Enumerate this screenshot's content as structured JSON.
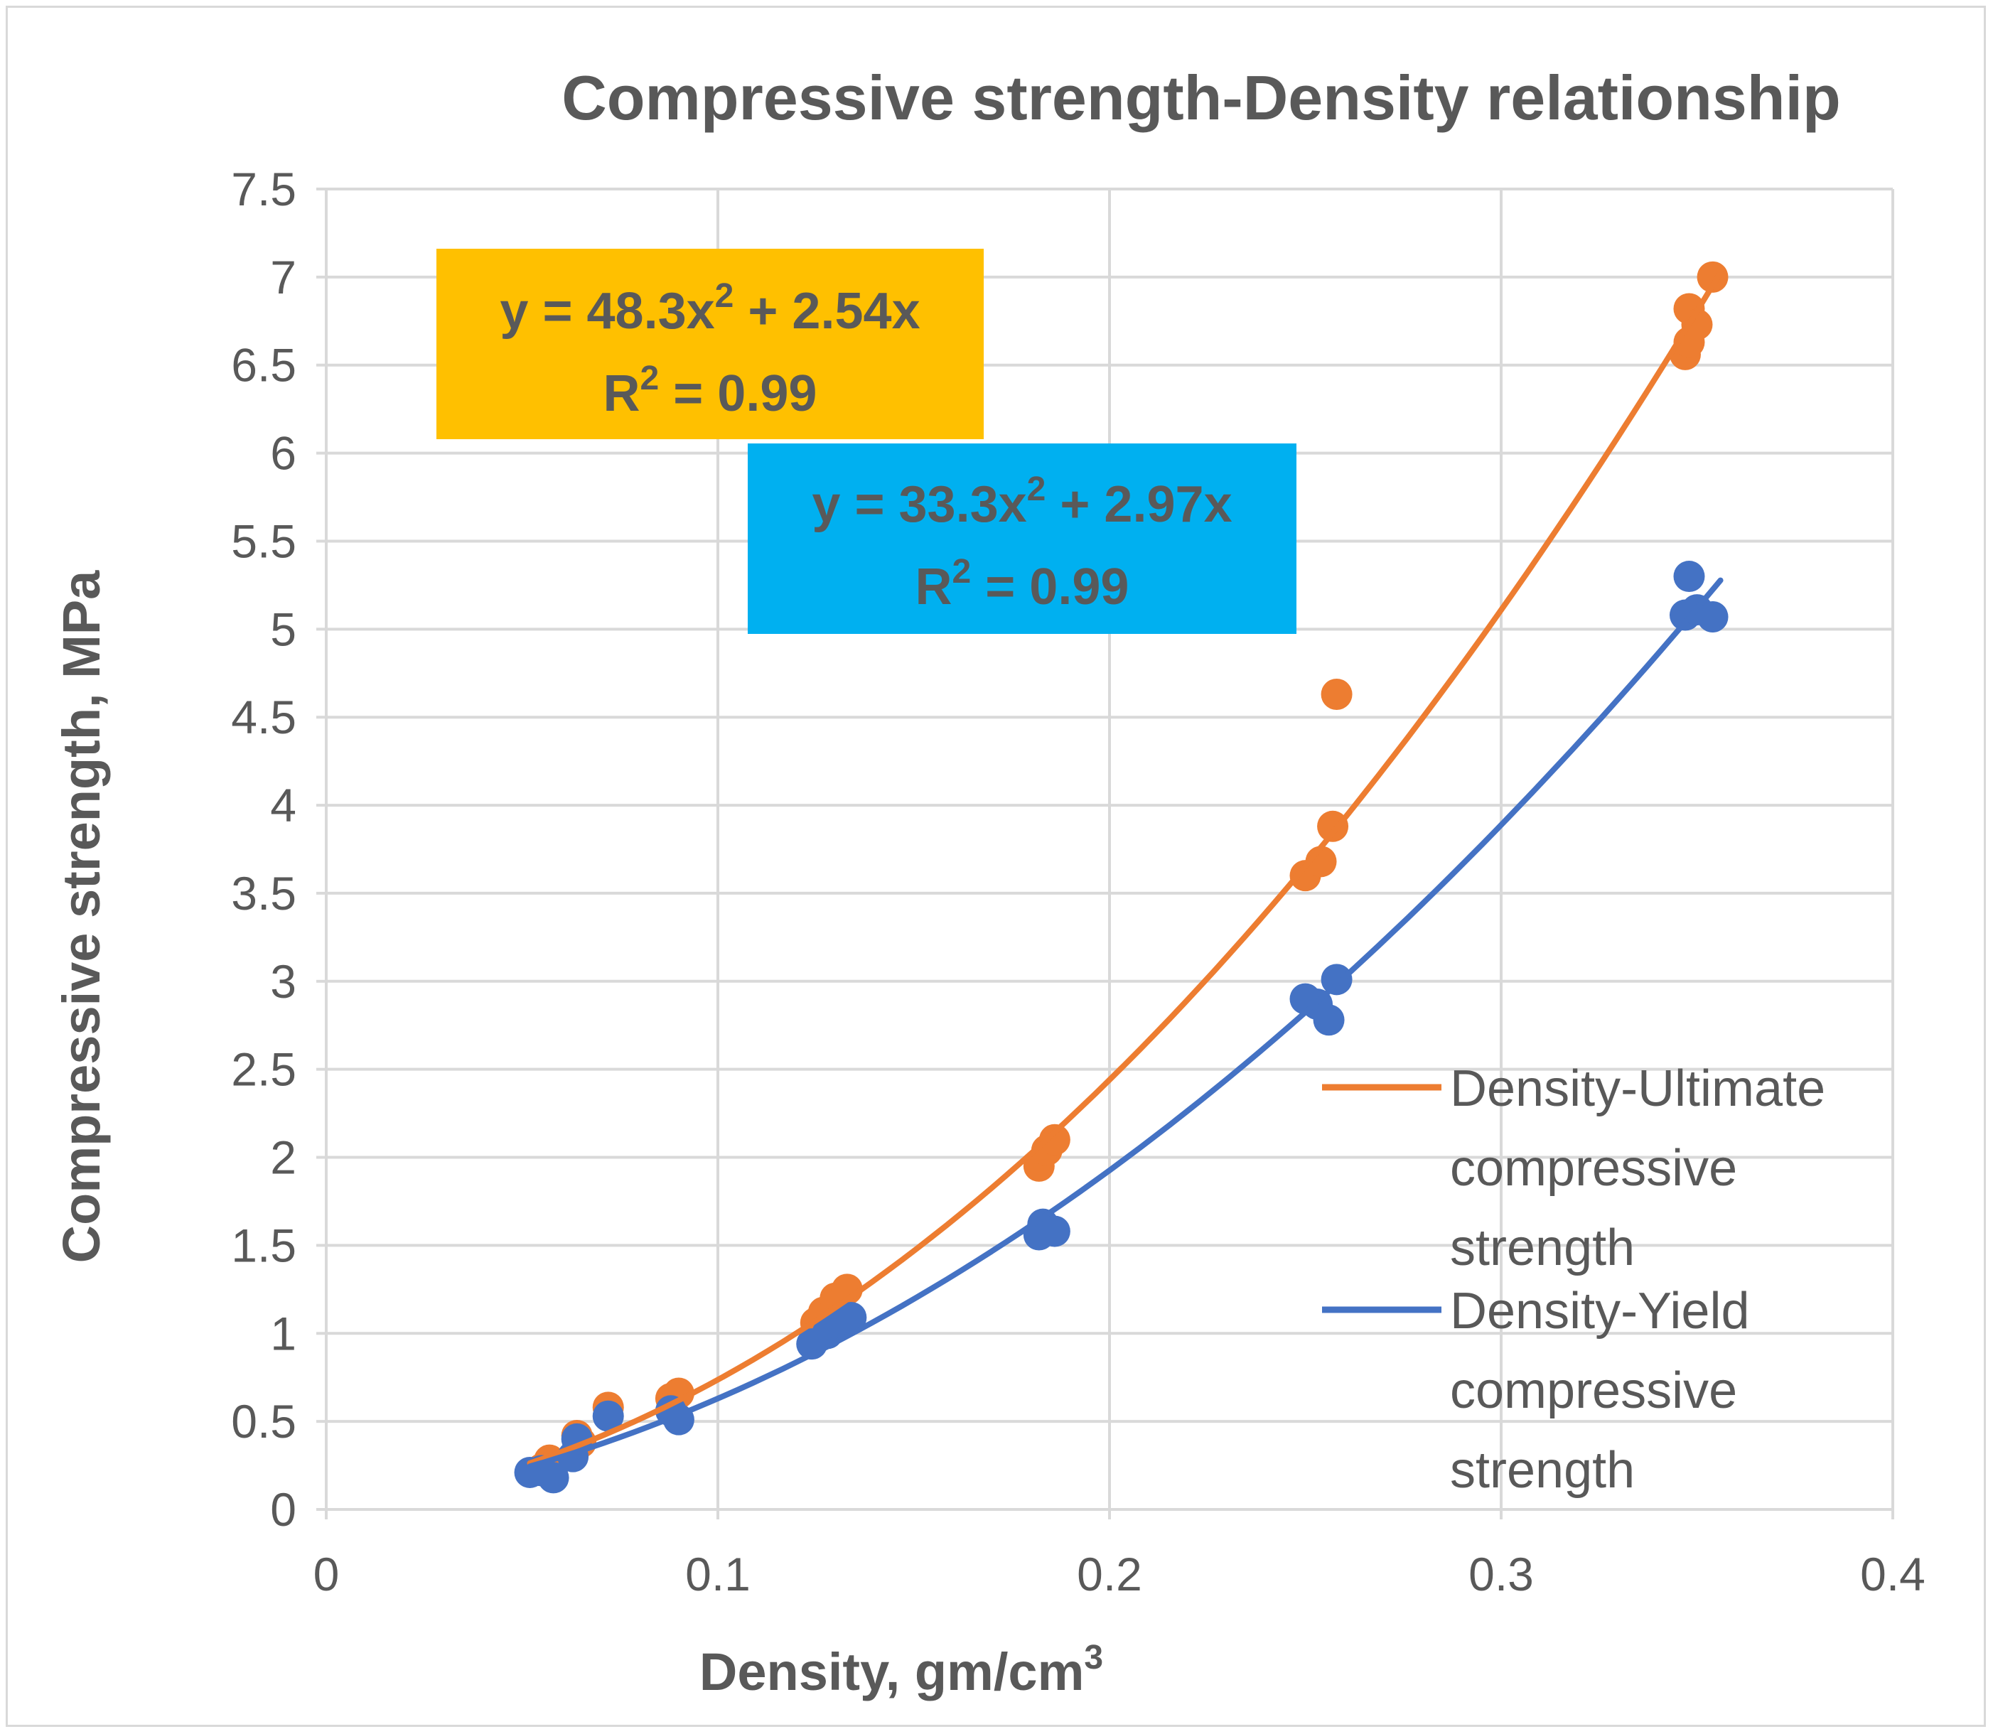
{
  "chart_data": {
    "type": "scatter",
    "title": "Compressive strength-Density relationship",
    "xlabel_main": "Density, gm/cm",
    "xlabel_sup": "3",
    "ylabel": "Compressive strength, MPa",
    "xlim": [
      0,
      0.4
    ],
    "ylim": [
      0,
      7.5
    ],
    "x_ticks": [
      "0",
      "0.1",
      "0.2",
      "0.3",
      "0.4"
    ],
    "y_ticks": [
      "0",
      "0.5",
      "1",
      "1.5",
      "2",
      "2.5",
      "3",
      "3.5",
      "4",
      "4.5",
      "5",
      "5.5",
      "6",
      "6.5",
      "7",
      "7.5"
    ],
    "x_tick_values": [
      0,
      0.1,
      0.2,
      0.3,
      0.4
    ],
    "y_tick_values": [
      0,
      0.5,
      1,
      1.5,
      2,
      2.5,
      3,
      3.5,
      4,
      4.5,
      5,
      5.5,
      6,
      6.5,
      7,
      7.5
    ],
    "grid": true,
    "legend_position": "right",
    "series": [
      {
        "name": "Density-Ultimate compressive strength",
        "legend_lines": [
          "Density-Ultimate",
          "compressive",
          "strength"
        ],
        "color": "#ED7D31",
        "points": [
          [
            0.055,
            0.23
          ],
          [
            0.057,
            0.28
          ],
          [
            0.058,
            0.25
          ],
          [
            0.064,
            0.42
          ],
          [
            0.065,
            0.38
          ],
          [
            0.072,
            0.58
          ],
          [
            0.088,
            0.63
          ],
          [
            0.09,
            0.66
          ],
          [
            0.125,
            1.06
          ],
          [
            0.127,
            1.12
          ],
          [
            0.13,
            1.2
          ],
          [
            0.133,
            1.25
          ],
          [
            0.182,
            1.95
          ],
          [
            0.184,
            2.04
          ],
          [
            0.186,
            2.1
          ],
          [
            0.25,
            3.6
          ],
          [
            0.254,
            3.68
          ],
          [
            0.257,
            3.88
          ],
          [
            0.258,
            4.63
          ],
          [
            0.347,
            6.56
          ],
          [
            0.348,
            6.82
          ],
          [
            0.348,
            6.63
          ],
          [
            0.35,
            6.73
          ],
          [
            0.354,
            7.0
          ]
        ],
        "trend": {
          "a": 48.3,
          "b": 2.54,
          "x_from": 0.052,
          "x_to": 0.356
        },
        "equation": "y = 48.3x",
        "equation_tail": " + 2.54x",
        "r2_value": " = 0.99",
        "box_color": "#FFC000"
      },
      {
        "name": "Density-Yield compressive strength",
        "legend_lines": [
          "Density-Yield",
          "compressive",
          "strength"
        ],
        "color": "#4472C4",
        "points": [
          [
            0.052,
            0.21
          ],
          [
            0.055,
            0.22
          ],
          [
            0.058,
            0.18
          ],
          [
            0.063,
            0.3
          ],
          [
            0.064,
            0.4
          ],
          [
            0.072,
            0.53
          ],
          [
            0.088,
            0.56
          ],
          [
            0.09,
            0.51
          ],
          [
            0.124,
            0.94
          ],
          [
            0.128,
            1.0
          ],
          [
            0.131,
            1.05
          ],
          [
            0.134,
            1.09
          ],
          [
            0.182,
            1.56
          ],
          [
            0.183,
            1.62
          ],
          [
            0.186,
            1.58
          ],
          [
            0.25,
            2.9
          ],
          [
            0.253,
            2.87
          ],
          [
            0.256,
            2.78
          ],
          [
            0.258,
            3.01
          ],
          [
            0.347,
            5.08
          ],
          [
            0.348,
            5.3
          ],
          [
            0.35,
            5.11
          ],
          [
            0.354,
            5.07
          ]
        ],
        "trend": {
          "a": 33.3,
          "b": 2.97,
          "x_from": 0.052,
          "x_to": 0.356
        },
        "equation": "y = 33.3x",
        "equation_tail": " + 2.97x",
        "r2_value": " = 0.99",
        "box_color": "#00B0F0"
      }
    ],
    "superscript_2": "2",
    "r2_prefix": "R"
  }
}
